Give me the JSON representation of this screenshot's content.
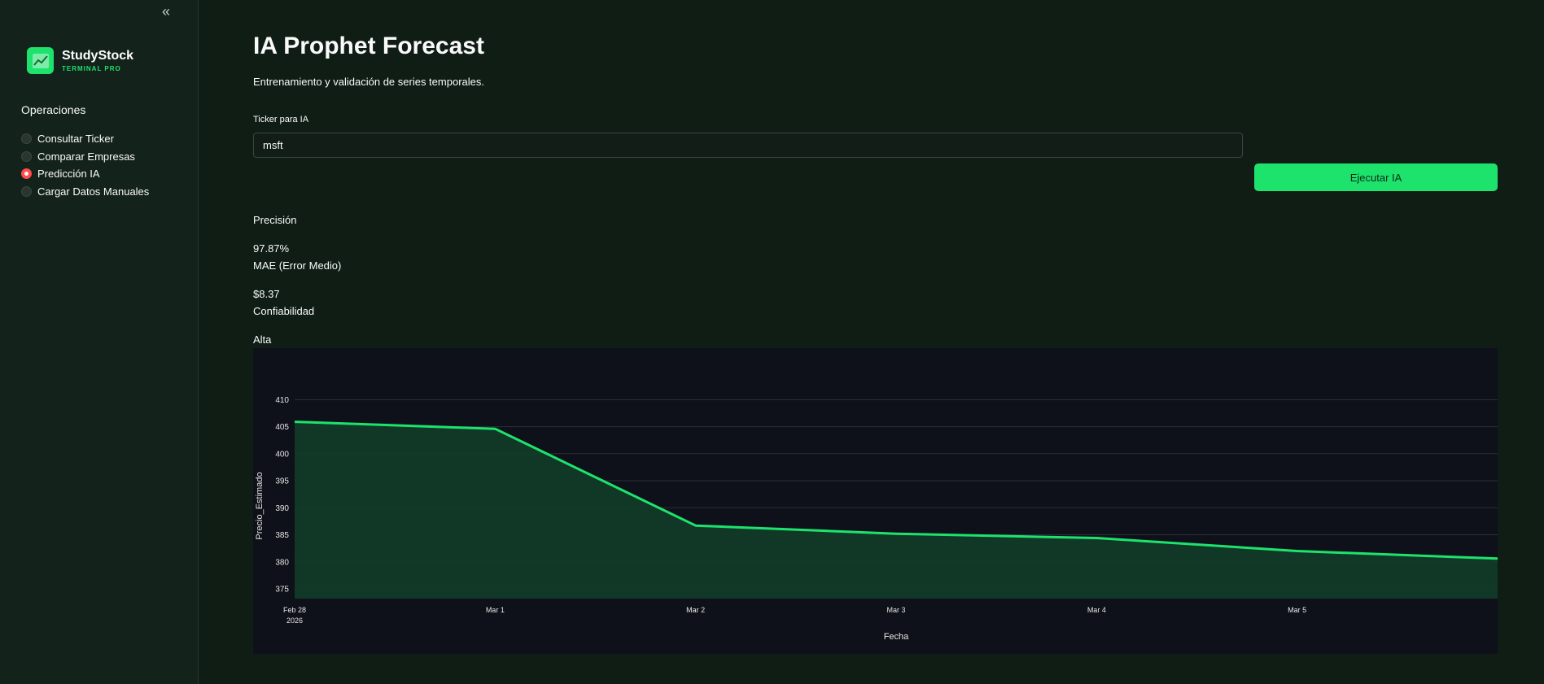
{
  "sidebar": {
    "collapse_icon": "double-chevron-left-icon",
    "collapse_glyph": "«",
    "brand": {
      "name": "StudyStock",
      "subtitle": "TERMINAL PRO",
      "logo_icon": "chart-logo-icon"
    },
    "section_label": "Operaciones",
    "options": [
      {
        "label": "Consultar Ticker",
        "selected": false
      },
      {
        "label": "Comparar Empresas",
        "selected": false
      },
      {
        "label": "Predicción IA",
        "selected": true
      },
      {
        "label": "Cargar Datos Manuales",
        "selected": false
      }
    ]
  },
  "main": {
    "title": "IA Prophet Forecast",
    "subtitle": "Entrenamiento y validación de series temporales.",
    "ticker_label": "Ticker para IA",
    "ticker_value": "msft",
    "run_button": "Ejecutar IA",
    "metrics": {
      "precision_label": "Precisión",
      "precision_value": "97.87%",
      "mae_label": "MAE (Error Medio)",
      "mae_value": "$8.37",
      "confidence_label": "Confiabilidad",
      "confidence_value": "Alta"
    }
  },
  "colors": {
    "accent": "#1de36d",
    "radio_active": "#ff4b4b",
    "background": "#0f1d15",
    "sidebar": "#13221a",
    "chart_bg": "#0e1119"
  },
  "chart_data": {
    "type": "area",
    "xlabel": "Fecha",
    "ylabel": "Precio_Estimado",
    "x": [
      "2026-02-28",
      "2026-03-01",
      "2026-03-02",
      "2026-03-03",
      "2026-03-04",
      "2026-03-05",
      "2026-03-06"
    ],
    "x_tick_labels": [
      {
        "date": "2026-02-28",
        "line1": "Feb 28",
        "line2": "2026"
      },
      {
        "date": "2026-03-01",
        "line1": "Mar 1",
        "line2": ""
      },
      {
        "date": "2026-03-02",
        "line1": "Mar 2",
        "line2": ""
      },
      {
        "date": "2026-03-03",
        "line1": "Mar 3",
        "line2": ""
      },
      {
        "date": "2026-03-04",
        "line1": "Mar 4",
        "line2": ""
      },
      {
        "date": "2026-03-05",
        "line1": "Mar 5",
        "line2": ""
      }
    ],
    "y_ticks": [
      375,
      380,
      385,
      390,
      395,
      400,
      405,
      410
    ],
    "ylim": [
      373.2,
      410.5
    ],
    "series": [
      {
        "values": [
          405.9,
          404.6,
          386.7,
          385.2,
          384.4,
          382.0,
          380.6
        ]
      }
    ],
    "grid": true,
    "line_color": "#1de36d",
    "fill_color": "#123b27"
  }
}
